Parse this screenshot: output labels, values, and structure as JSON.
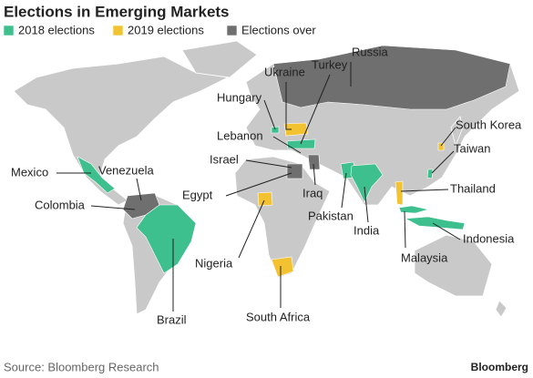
{
  "title": "Elections in Emerging Markets",
  "legend": [
    "2018 elections",
    "2019 elections",
    "Elections over"
  ],
  "labels": {
    "russia": "Russia",
    "ukraine": "Ukraine",
    "turkey": "Turkey",
    "hungary": "Hungary",
    "lebanon": "Lebanon",
    "israel": "Israel",
    "egypt": "Egypt",
    "iraq": "Iraq",
    "pakistan": "Pakistan",
    "india": "India",
    "nigeria": "Nigeria",
    "south_africa": "South Africa",
    "brazil": "Brazil",
    "mexico": "Mexico",
    "venezuela": "Venezuela",
    "colombia": "Colombia",
    "south_korea": "South Korea",
    "taiwan": "Taiwan",
    "thailand": "Thailand",
    "indonesia": "Indonesia",
    "malaysia": "Malaysia"
  },
  "source": "Source: Bloomberg Research",
  "brand": "Bloomberg"
}
